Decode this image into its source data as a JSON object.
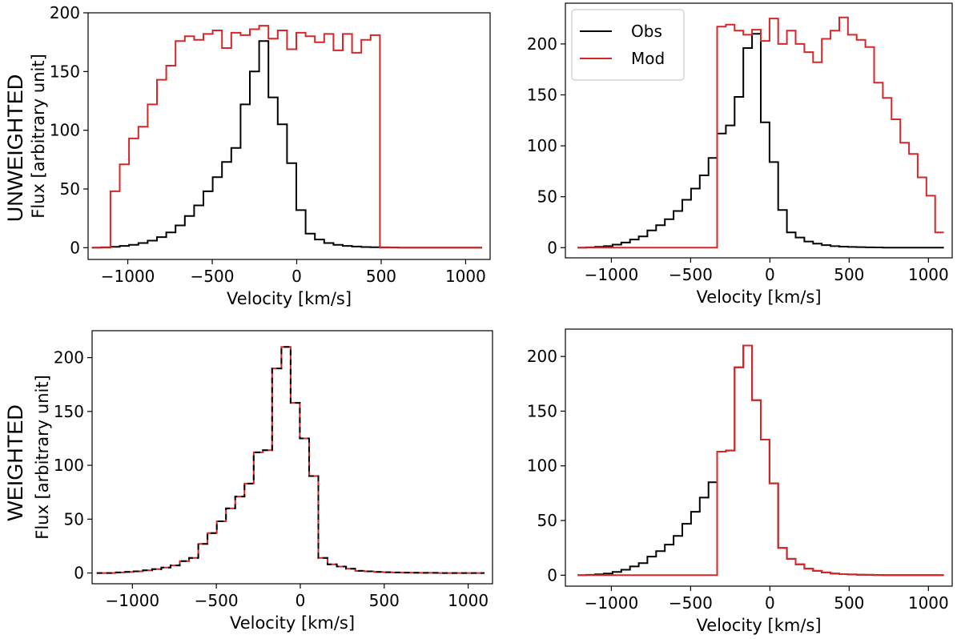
{
  "row_labels": {
    "top": "UNWEIGHTED",
    "bottom": "WEIGHTED"
  },
  "legend": {
    "obs": "Obs",
    "mod": "Mod"
  },
  "colors": {
    "obs": "#000000",
    "mod": "#d62728"
  },
  "chart_data": [
    {
      "type": "line",
      "drawstyle": "steps",
      "panel": "top-left",
      "xlabel": "Velocity [km/s]",
      "ylabel": "Flux [arbitrary unit]",
      "xlim": [
        -1235,
        1145
      ],
      "ylim": [
        -10,
        200
      ],
      "xticks": [
        -1000,
        -500,
        0,
        500,
        1000
      ],
      "yticks": [
        0,
        50,
        100,
        150,
        200
      ],
      "x": [
        -1185,
        -1130,
        -1075,
        -1020,
        -965,
        -910,
        -855,
        -800,
        -745,
        -690,
        -635,
        -580,
        -525,
        -470,
        -415,
        -360,
        -305,
        -250,
        -195,
        -140,
        -85,
        -30,
        25,
        80,
        135,
        190,
        245,
        300,
        355,
        410,
        465,
        520,
        575,
        630,
        685,
        740,
        795,
        850,
        905,
        960,
        1015,
        1070
      ],
      "series": [
        {
          "name": "Obs",
          "color": "#000000",
          "values": [
            0,
            0.3,
            0.8,
            1.5,
            2.5,
            4,
            6,
            9,
            13,
            19,
            27,
            36,
            48,
            60,
            73,
            85,
            122,
            150,
            176,
            128,
            105,
            72,
            32,
            12,
            7,
            4,
            2.5,
            1.5,
            1,
            0.6,
            0.4,
            0.3,
            0.2,
            0.1,
            0.1,
            0.1,
            0,
            0,
            0,
            0,
            0,
            0
          ]
        },
        {
          "name": "Mod",
          "color": "#d62728",
          "values": [
            0,
            0,
            48,
            71,
            93,
            103,
            122,
            143,
            155,
            176,
            180,
            177,
            182,
            185,
            170,
            183,
            181,
            186,
            189,
            178,
            185,
            169,
            183,
            180,
            175,
            182,
            168,
            182,
            166,
            177,
            181,
            0,
            0,
            0,
            0,
            0,
            0,
            0,
            0,
            0,
            0,
            0
          ]
        }
      ]
    },
    {
      "type": "line",
      "drawstyle": "steps",
      "panel": "top-right",
      "xlabel": "Velocity [km/s]",
      "ylabel": "",
      "xlim": [
        -1290,
        1150
      ],
      "ylim": [
        -10,
        240
      ],
      "xticks": [
        -1000,
        -500,
        0,
        500,
        1000
      ],
      "yticks": [
        0,
        50,
        100,
        150,
        200
      ],
      "legend_position": "upper-left",
      "x": [
        -1185,
        -1130,
        -1075,
        -1020,
        -965,
        -910,
        -855,
        -800,
        -745,
        -690,
        -635,
        -580,
        -525,
        -470,
        -415,
        -360,
        -305,
        -250,
        -195,
        -140,
        -85,
        -30,
        25,
        80,
        135,
        190,
        245,
        300,
        355,
        410,
        465,
        520,
        575,
        630,
        685,
        740,
        795,
        850,
        905,
        960,
        1015,
        1070
      ],
      "series": [
        {
          "name": "Obs",
          "color": "#000000",
          "values": [
            0,
            0.3,
            0.8,
            1.5,
            3,
            5,
            8,
            11,
            17,
            22,
            28,
            36,
            47,
            58,
            71,
            88,
            112,
            120,
            148,
            196,
            210,
            123,
            84,
            37,
            15,
            10,
            6,
            4,
            2.5,
            1.5,
            1,
            0.7,
            0.5,
            0.3,
            0.2,
            0.1,
            0.1,
            0,
            0,
            0,
            0,
            0
          ]
        },
        {
          "name": "Mod",
          "color": "#d62728",
          "values": [
            0,
            0,
            0,
            0,
            0,
            0,
            0,
            0,
            0,
            0,
            0,
            0,
            0,
            0,
            0,
            0,
            217,
            219,
            213,
            209,
            214,
            203,
            225,
            200,
            213,
            200,
            192,
            182,
            205,
            213,
            226,
            209,
            204,
            197,
            162,
            147,
            126,
            103,
            92,
            69,
            51,
            15
          ]
        }
      ]
    },
    {
      "type": "line",
      "drawstyle": "steps",
      "panel": "bottom-left",
      "xlabel": "Velocity [km/s]",
      "ylabel": "Flux [arbitrary unit]",
      "xlim": [
        -1240,
        1145
      ],
      "ylim": [
        -10,
        225
      ],
      "xticks": [
        -1000,
        -500,
        0,
        500,
        1000
      ],
      "yticks": [
        0,
        50,
        100,
        150,
        200
      ],
      "x": [
        -1185,
        -1130,
        -1075,
        -1020,
        -965,
        -910,
        -855,
        -800,
        -745,
        -690,
        -635,
        -580,
        -525,
        -470,
        -415,
        -360,
        -305,
        -250,
        -195,
        -140,
        -85,
        -30,
        25,
        80,
        135,
        190,
        245,
        300,
        355,
        410,
        465,
        520,
        575,
        630,
        685,
        740,
        795,
        850,
        905,
        960,
        1015,
        1070
      ],
      "series": [
        {
          "name": "Obs",
          "color": "#000000",
          "dashed": true,
          "values": [
            0,
            0,
            0.5,
            1,
            1.5,
            2.5,
            3.5,
            5,
            7,
            11,
            14,
            27,
            37,
            48,
            60,
            71,
            83,
            112,
            114,
            190,
            210,
            158,
            125,
            90,
            14,
            8,
            6,
            4,
            2,
            1.5,
            1,
            0.7,
            0.5,
            0.3,
            0.2,
            0.1,
            0.1,
            0,
            0,
            0,
            0,
            0
          ]
        },
        {
          "name": "Mod",
          "color": "#d62728",
          "values": [
            0,
            0,
            0.5,
            1,
            1.5,
            2.5,
            3.5,
            5,
            7,
            11,
            14,
            27,
            37,
            48,
            60,
            71,
            83,
            112,
            114,
            190,
            210,
            158,
            125,
            90,
            14,
            8,
            6,
            4,
            2,
            1.5,
            1,
            0.7,
            0.5,
            0.3,
            0.2,
            0.1,
            0.1,
            0,
            0,
            0,
            0,
            0
          ]
        }
      ]
    },
    {
      "type": "line",
      "drawstyle": "steps",
      "panel": "bottom-right",
      "xlabel": "Velocity [km/s]",
      "ylabel": "",
      "xlim": [
        -1290,
        1150
      ],
      "ylim": [
        -10,
        225
      ],
      "xticks": [
        -1000,
        -500,
        0,
        500,
        1000
      ],
      "yticks": [
        0,
        50,
        100,
        150,
        200
      ],
      "x": [
        -1185,
        -1130,
        -1075,
        -1020,
        -965,
        -910,
        -855,
        -800,
        -745,
        -690,
        -635,
        -580,
        -525,
        -470,
        -415,
        -360,
        -305,
        -250,
        -195,
        -140,
        -85,
        -30,
        25,
        80,
        135,
        190,
        245,
        300,
        355,
        410,
        465,
        520,
        575,
        630,
        685,
        740,
        795,
        850,
        905,
        960,
        1015,
        1070
      ],
      "series": [
        {
          "name": "Obs",
          "color": "#000000",
          "values": [
            0,
            0.3,
            0.8,
            1.5,
            3,
            5,
            8,
            11,
            17,
            22,
            28,
            36,
            47,
            58,
            71,
            85,
            113,
            114,
            190,
            210,
            160,
            124,
            84,
            25,
            15,
            10,
            6,
            4,
            2.5,
            1.5,
            1,
            0.7,
            0.5,
            0.3,
            0.2,
            0.1,
            0.1,
            0,
            0,
            0,
            0,
            0
          ]
        },
        {
          "name": "Mod",
          "color": "#d62728",
          "values": [
            0,
            0,
            0,
            0,
            0,
            0,
            0,
            0,
            0,
            0,
            0,
            0,
            0,
            0,
            0,
            0,
            113,
            114,
            190,
            210,
            160,
            124,
            84,
            25,
            15,
            10,
            6,
            4,
            2.5,
            1.5,
            1,
            0.7,
            0.5,
            0.3,
            0.2,
            0.1,
            0.1,
            0,
            0,
            0,
            0,
            0
          ]
        }
      ]
    }
  ]
}
